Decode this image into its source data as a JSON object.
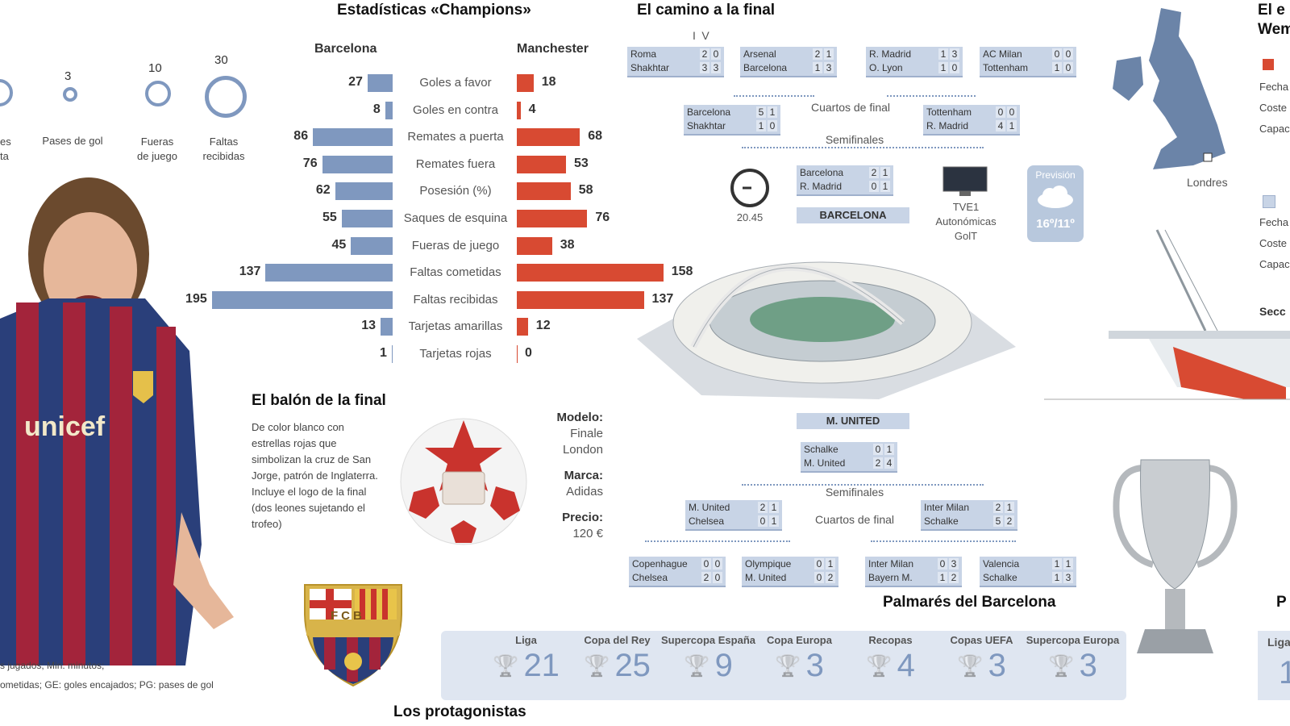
{
  "titles": {
    "stats": "Estadísticas «Champions»",
    "road": "El camino a la final",
    "wembley_partial": "El e",
    "wembley_partial2": "Wem",
    "ball": "El balón de la final",
    "palmares": "Palmarés del Barcelona",
    "protagonists": "Los protagonistas",
    "palmares_right_partial": "P"
  },
  "player_stats": {
    "items": [
      {
        "value": "",
        "label": "es\nta"
      },
      {
        "value": "3",
        "label": "Pases de gol"
      },
      {
        "value": "10",
        "label": "Fueras\nde juego"
      },
      {
        "value": "30",
        "label": "Faltas\nrecibidas"
      }
    ]
  },
  "legend_notes": {
    "line1": "s jugados; Min: minutos;",
    "line2": "ometidas; GE: goles encajados; PG: pases de gol"
  },
  "stats": {
    "team_left": "Barcelona",
    "team_right": "Manchester",
    "rows": [
      {
        "label": "Goles a favor",
        "b": 27,
        "m": 18
      },
      {
        "label": "Goles en contra",
        "b": 8,
        "m": 4
      },
      {
        "label": "Remates a puerta",
        "b": 86,
        "m": 68
      },
      {
        "label": "Remates fuera",
        "b": 76,
        "m": 53
      },
      {
        "label": "Posesión (%)",
        "b": 62,
        "m": 58
      },
      {
        "label": "Saques de esquina",
        "b": 55,
        "m": 76
      },
      {
        "label": "Fueras de juego",
        "b": 45,
        "m": 38
      },
      {
        "label": "Faltas cometidas",
        "b": 137,
        "m": 158
      },
      {
        "label": "Faltas recibidas",
        "b": 195,
        "m": 137
      },
      {
        "label": "Tarjetas amarillas",
        "b": 13,
        "m": 12
      },
      {
        "label": "Tarjetas rojas",
        "b": 1,
        "m": 0
      }
    ]
  },
  "ball": {
    "description": "De color blanco con estrellas rojas que simbolizan la cruz de San Jorge, patrón de Inglaterra. Incluye el logo de la final (dos leones sujetando el trofeo)",
    "model_label": "Modelo:",
    "model_value": "Finale London",
    "brand_label": "Marca:",
    "brand_value": "Adidas",
    "price_label": "Precio:",
    "price_value": "120 €"
  },
  "bracket": {
    "legs": [
      "I",
      "V"
    ],
    "top_r16": [
      {
        "t1": "Roma",
        "t2": "Shakhtar",
        "s1": [
          "2",
          "0"
        ],
        "s2": [
          "3",
          "3"
        ]
      },
      {
        "t1": "Arsenal",
        "t2": "Barcelona",
        "s1": [
          "2",
          "1"
        ],
        "s2": [
          "1",
          "3"
        ]
      },
      {
        "t1": "R. Madrid",
        "t2": "O. Lyon",
        "s1": [
          "1",
          "3"
        ],
        "s2": [
          "1",
          "0"
        ]
      },
      {
        "t1": "AC Milan",
        "t2": "Tottenham",
        "s1": [
          "0",
          "0"
        ],
        "s2": [
          "1",
          "0"
        ]
      }
    ],
    "top_qf": [
      {
        "t1": "Barcelona",
        "t2": "Shakhtar",
        "s1": [
          "5",
          "1"
        ],
        "s2": [
          "1",
          "0"
        ]
      },
      {
        "t1": "Tottenham",
        "t2": "R. Madrid",
        "s1": [
          "0",
          "0"
        ],
        "s2": [
          "4",
          "1"
        ]
      }
    ],
    "top_sf": {
      "t1": "Barcelona",
      "t2": "R. Madrid",
      "s1": [
        "2",
        "1"
      ],
      "s2": [
        "0",
        "1"
      ]
    },
    "finalist_top": "BARCELONA",
    "finalist_bottom": "M. UNITED",
    "bottom_sf": {
      "t1": "Schalke",
      "t2": "M. United",
      "s1": [
        "0",
        "1"
      ],
      "s2": [
        "2",
        "4"
      ]
    },
    "bottom_qf": [
      {
        "t1": "M. United",
        "t2": "Chelsea",
        "s1": [
          "2",
          "1"
        ],
        "s2": [
          "0",
          "1"
        ]
      },
      {
        "t1": "Inter Milan",
        "t2": "Schalke",
        "s1": [
          "2",
          "1"
        ],
        "s2": [
          "5",
          "2"
        ]
      }
    ],
    "bottom_r16": [
      {
        "t1": "Copenhague",
        "t2": "Chelsea",
        "s1": [
          "0",
          "0"
        ],
        "s2": [
          "2",
          "0"
        ]
      },
      {
        "t1": "Olympique",
        "t2": "M. United",
        "s1": [
          "0",
          "1"
        ],
        "s2": [
          "0",
          "2"
        ]
      },
      {
        "t1": "Inter Milan",
        "t2": "Bayern M.",
        "s1": [
          "0",
          "3"
        ],
        "s2": [
          "1",
          "2"
        ]
      },
      {
        "t1": "Valencia",
        "t2": "Schalke",
        "s1": [
          "1",
          "1"
        ],
        "s2": [
          "1",
          "3"
        ]
      }
    ],
    "qf_label": "Cuartos de final",
    "sf_label": "Semifinales"
  },
  "match_info": {
    "time": "20.45",
    "tv": "TVE1\nAutonómicas\nGolT",
    "forecast_label": "Previsión",
    "forecast_temp": "16º/11º"
  },
  "map": {
    "city": "Londres"
  },
  "wembley_info": {
    "partials": [
      "Fecha",
      "Coste",
      "Capac"
    ],
    "partials2": [
      "Fecha",
      "Coste",
      "Capac"
    ],
    "section_partial": "Secc"
  },
  "palmares": [
    {
      "name": "Liga",
      "value": "21"
    },
    {
      "name": "Copa del Rey",
      "value": "25"
    },
    {
      "name": "Supercopa España",
      "value": "9"
    },
    {
      "name": "Copa Europa",
      "value": "3"
    },
    {
      "name": "Recopas",
      "value": "4"
    },
    {
      "name": "Copas UEFA",
      "value": "3"
    },
    {
      "name": "Supercopa Europa",
      "value": "3"
    }
  ],
  "palmares_right": {
    "name": "Liga",
    "value": "1"
  },
  "crest_text": "FCB",
  "colors": {
    "barcelona": "#7f98bf",
    "manchester": "#d84a32",
    "panel": "#c8d4e6"
  }
}
